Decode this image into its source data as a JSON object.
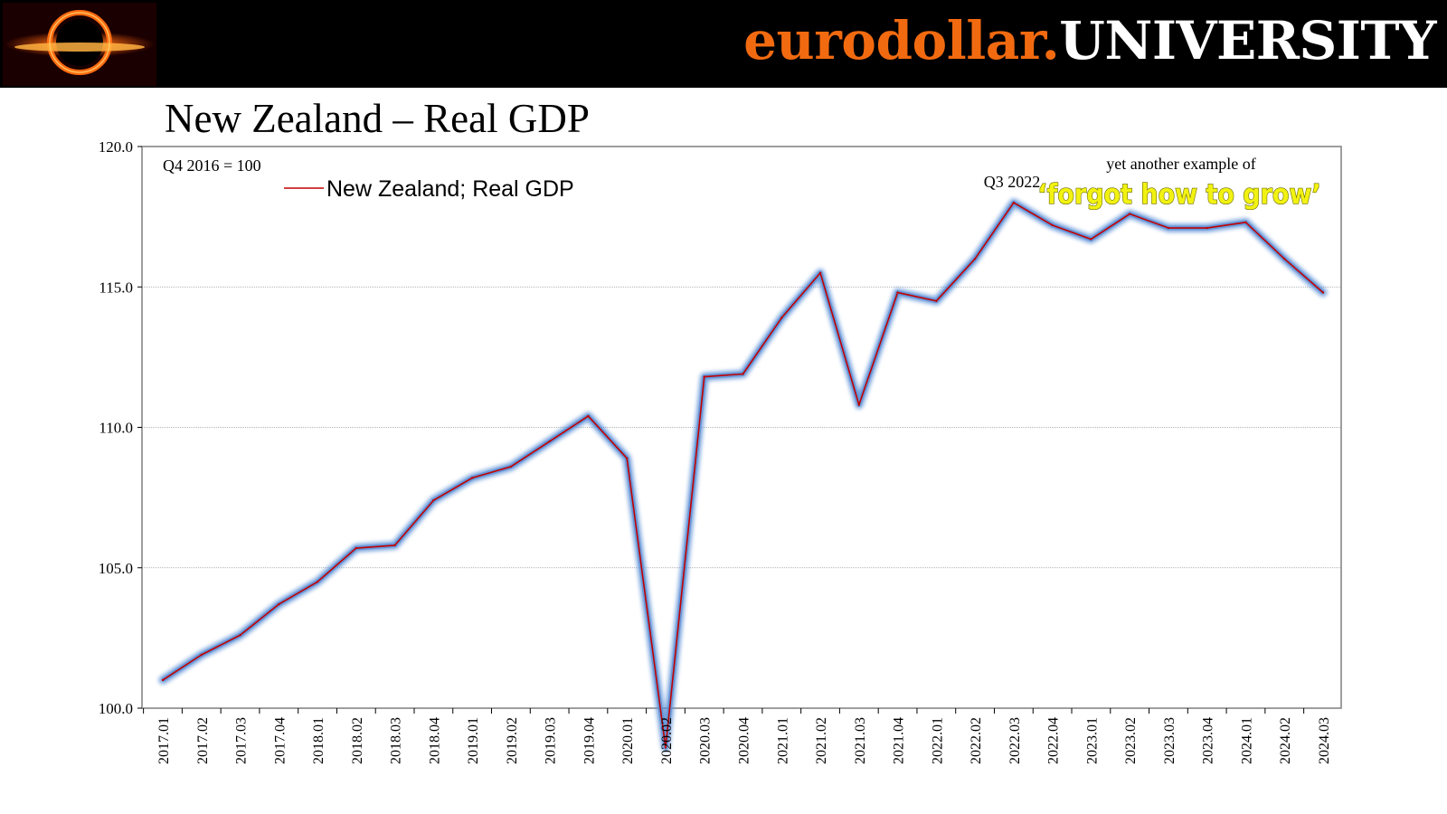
{
  "header": {
    "brand_part1": "eurodollar.",
    "brand_part2": "UNIVERSITY"
  },
  "page_title": "New Zealand – Real GDP",
  "chart_data": {
    "type": "line",
    "title": "New Zealand – Real GDP",
    "xlabel": "",
    "ylabel": "",
    "ylim": [
      100,
      120
    ],
    "yticks": [
      "100.0",
      "105.0",
      "110.0",
      "115.0",
      "120.0"
    ],
    "grid": true,
    "legend_position": "top-left",
    "base_note": "Q4 2016 = 100",
    "categories": [
      "2017.01",
      "2017.02",
      "2017.03",
      "2017.04",
      "2018.01",
      "2018.02",
      "2018.03",
      "2018.04",
      "2019.01",
      "2019.02",
      "2019.03",
      "2019.04",
      "2020.01",
      "2020.02",
      "2020.03",
      "2020.04",
      "2021.01",
      "2021.02",
      "2021.03",
      "2021.04",
      "2022.01",
      "2022.02",
      "2022.03",
      "2022.04",
      "2023.01",
      "2023.02",
      "2023.03",
      "2023.04",
      "2024.01",
      "2024.02",
      "2024.03"
    ],
    "series": [
      {
        "name": "New Zealand; Real GDP",
        "color": "#c00000",
        "glow_color": "#5b8fd6",
        "values": [
          101.0,
          101.9,
          102.6,
          103.7,
          104.5,
          105.7,
          105.8,
          107.4,
          108.2,
          108.6,
          109.5,
          110.4,
          108.9,
          98.6,
          111.8,
          111.9,
          113.9,
          115.5,
          110.8,
          114.8,
          114.5,
          116.0,
          118.0,
          117.2,
          116.7,
          117.6,
          117.1,
          117.1,
          117.3,
          116.0,
          114.8
        ]
      }
    ],
    "annotations": [
      {
        "text": "Q3 2022",
        "at": "2022.03"
      },
      {
        "text": "yet another example of"
      },
      {
        "text": "‘forgot how to grow’",
        "color": "#f2f212"
      }
    ]
  },
  "colors": {
    "header_bg": "#000000",
    "brand_orange": "#f26a10",
    "brand_white": "#ffffff"
  }
}
